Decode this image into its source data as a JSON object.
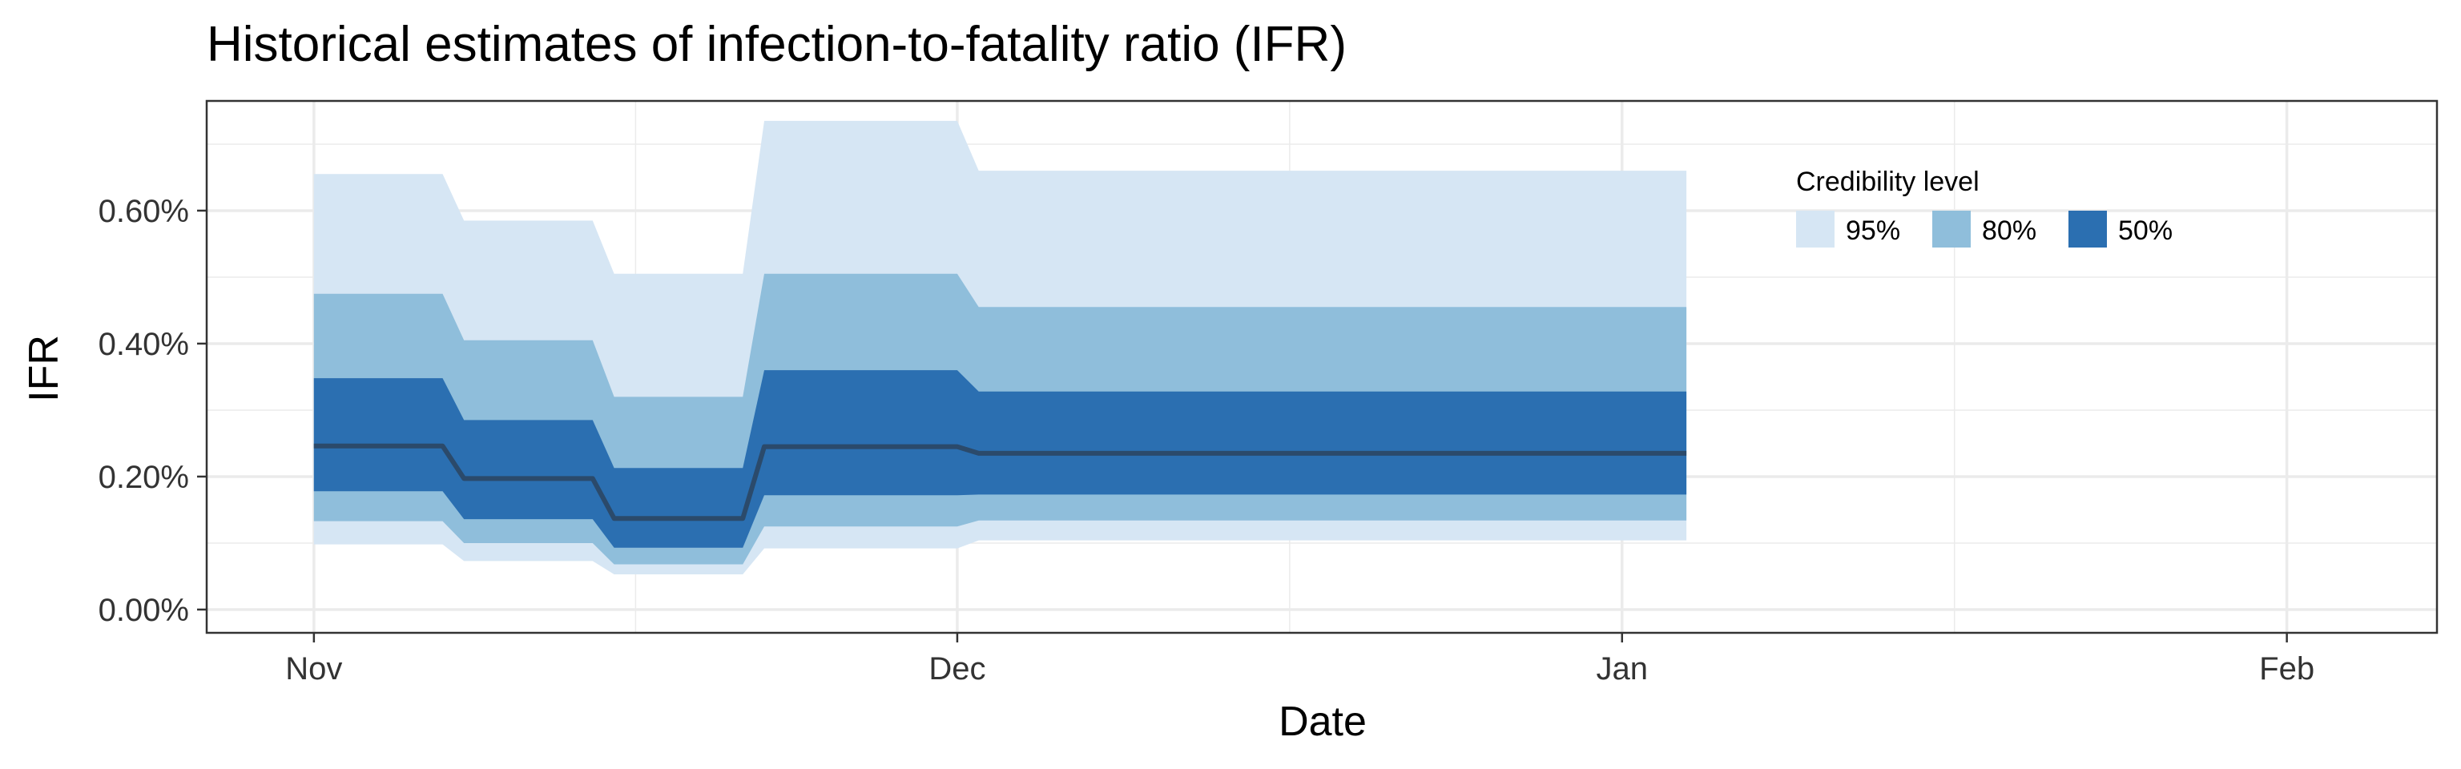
{
  "chart_data": {
    "type": "area",
    "title": "Historical estimates of infection-to-fatality ratio (IFR)",
    "xlabel": "Date",
    "ylabel": "IFR",
    "x_ticks": [
      {
        "date": "2020-11-01",
        "label": "Nov"
      },
      {
        "date": "2020-12-01",
        "label": "Dec"
      },
      {
        "date": "2021-01-01",
        "label": "Jan"
      },
      {
        "date": "2021-02-01",
        "label": "Feb"
      }
    ],
    "xlim": [
      "2020-10-27",
      "2021-02-08"
    ],
    "y_ticks": [
      {
        "value": 0.0,
        "label": "0.00%"
      },
      {
        "value": 0.2,
        "label": "0.20%"
      },
      {
        "value": 0.4,
        "label": "0.40%"
      },
      {
        "value": 0.6,
        "label": "0.60%"
      }
    ],
    "ylim": [
      -0.035,
      0.765
    ],
    "grid": true,
    "legend": {
      "title": "Credibility level",
      "position": "top-right",
      "items": [
        {
          "label": "95%",
          "color": "#d6e6f4"
        },
        {
          "label": "80%",
          "color": "#8fbedb"
        },
        {
          "label": "50%",
          "color": "#2b6fb1"
        }
      ]
    },
    "median_color": "#2b4a6b",
    "x": [
      "2020-11-01",
      "2020-11-07",
      "2020-11-08",
      "2020-11-14",
      "2020-11-15",
      "2020-11-21",
      "2020-11-22",
      "2020-12-01",
      "2020-12-02",
      "2021-01-04"
    ],
    "series": [
      {
        "band": "95%",
        "lower": [
          0.098,
          0.098,
          0.073,
          0.073,
          0.053,
          0.053,
          0.092,
          0.092,
          0.104,
          0.104
        ],
        "upper": [
          0.655,
          0.655,
          0.585,
          0.585,
          0.505,
          0.505,
          0.735,
          0.735,
          0.66,
          0.66
        ]
      },
      {
        "band": "80%",
        "lower": [
          0.133,
          0.133,
          0.1,
          0.1,
          0.068,
          0.068,
          0.125,
          0.125,
          0.134,
          0.134
        ],
        "upper": [
          0.475,
          0.475,
          0.405,
          0.405,
          0.32,
          0.32,
          0.505,
          0.505,
          0.455,
          0.455
        ]
      },
      {
        "band": "50%",
        "lower": [
          0.178,
          0.178,
          0.136,
          0.136,
          0.093,
          0.093,
          0.172,
          0.172,
          0.173,
          0.173
        ],
        "upper": [
          0.348,
          0.348,
          0.285,
          0.285,
          0.213,
          0.213,
          0.36,
          0.36,
          0.328,
          0.328
        ]
      },
      {
        "band": "median",
        "values": [
          0.246,
          0.246,
          0.197,
          0.197,
          0.137,
          0.137,
          0.245,
          0.245,
          0.235,
          0.235
        ]
      }
    ]
  }
}
